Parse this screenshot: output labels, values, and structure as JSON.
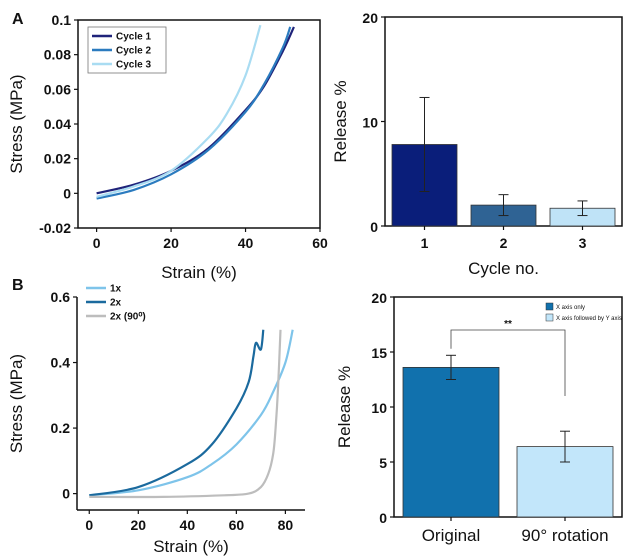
{
  "panels": {
    "a": "A",
    "b": "B"
  },
  "chart_data": [
    {
      "id": "a_left",
      "type": "line",
      "xlabel": "Strain (%)",
      "ylabel": "Stress (MPa)",
      "xlim": [
        -5,
        60
      ],
      "ylim": [
        -0.02,
        0.1
      ],
      "xticks": [
        0,
        20,
        40,
        60
      ],
      "yticks": [
        -0.02,
        0,
        0.02,
        0.04,
        0.06,
        0.08,
        0.1
      ],
      "ytick_labels": [
        "-0.02",
        "0",
        "0.02",
        "0.04",
        "0.06",
        "0.08",
        "0.1"
      ],
      "legend": "top-left",
      "series": [
        {
          "name": "Cycle 1",
          "color": "#1f237a",
          "x": [
            0,
            10,
            20,
            30,
            40,
            45,
            50,
            53
          ],
          "y": [
            0.0,
            0.005,
            0.013,
            0.026,
            0.048,
            0.062,
            0.082,
            0.096
          ]
        },
        {
          "name": "Cycle 2",
          "color": "#2b7bbf",
          "x": [
            0,
            10,
            20,
            30,
            40,
            45,
            50,
            52
          ],
          "y": [
            -0.003,
            0.002,
            0.011,
            0.025,
            0.047,
            0.063,
            0.084,
            0.096
          ]
        },
        {
          "name": "Cycle 3",
          "color": "#a9dcf2",
          "x": [
            0,
            10,
            20,
            30,
            35,
            40,
            44
          ],
          "y": [
            -0.002,
            0.004,
            0.013,
            0.032,
            0.046,
            0.068,
            0.097
          ]
        }
      ]
    },
    {
      "id": "a_right",
      "type": "bar",
      "xlabel": "Cycle no.",
      "ylabel": "Release %",
      "categories": [
        "1",
        "2",
        "3"
      ],
      "values": [
        7.8,
        2.0,
        1.7
      ],
      "errors": [
        4.5,
        1.0,
        0.7
      ],
      "colors": [
        "#0a1e7a",
        "#2f6394",
        "#bfe3f7"
      ],
      "ylim": [
        0,
        20
      ],
      "yticks": [
        0,
        10,
        20
      ]
    },
    {
      "id": "b_left",
      "type": "line",
      "xlabel": "Strain (%)",
      "ylabel": "Stress (MPa)",
      "xlim": [
        -5,
        88
      ],
      "ylim": [
        -0.05,
        0.6
      ],
      "xticks": [
        0,
        20,
        40,
        60,
        80
      ],
      "yticks": [
        0,
        0.2,
        0.4,
        0.6
      ],
      "ytick_labels": [
        "0",
        "0.2",
        "0.4",
        "0.6"
      ],
      "legend": "top-left",
      "series": [
        {
          "name": "1x",
          "color": "#7ec4ea",
          "x": [
            0,
            20,
            40,
            50,
            60,
            70,
            75,
            80,
            83
          ],
          "y": [
            -0.005,
            0.01,
            0.05,
            0.09,
            0.15,
            0.24,
            0.31,
            0.4,
            0.5
          ]
        },
        {
          "name": "2x",
          "color": "#1b6a9e",
          "x": [
            0,
            20,
            40,
            50,
            60,
            65,
            67,
            68,
            70,
            71
          ],
          "y": [
            -0.005,
            0.02,
            0.09,
            0.15,
            0.26,
            0.34,
            0.42,
            0.46,
            0.44,
            0.5
          ]
        },
        {
          "name": "2x (90⁰)",
          "color": "#bdbdbd",
          "x": [
            0,
            30,
            55,
            65,
            70,
            73,
            75,
            76,
            77,
            78
          ],
          "y": [
            -0.01,
            -0.01,
            -0.005,
            0.0,
            0.02,
            0.06,
            0.12,
            0.2,
            0.32,
            0.5
          ]
        }
      ]
    },
    {
      "id": "b_right",
      "type": "bar",
      "ylabel": "Release %",
      "categories": [
        "Original",
        "90° rotation"
      ],
      "values": [
        13.6,
        6.4
      ],
      "errors": [
        1.1,
        1.4
      ],
      "colors": [
        "#1171ad",
        "#c2e6fa"
      ],
      "ylim": [
        0,
        20
      ],
      "yticks": [
        0,
        5,
        10,
        15,
        20
      ],
      "legend": "top-right",
      "legend_entries": [
        "X axis only",
        "X axis followed by Y axis"
      ],
      "significance": "**"
    }
  ]
}
